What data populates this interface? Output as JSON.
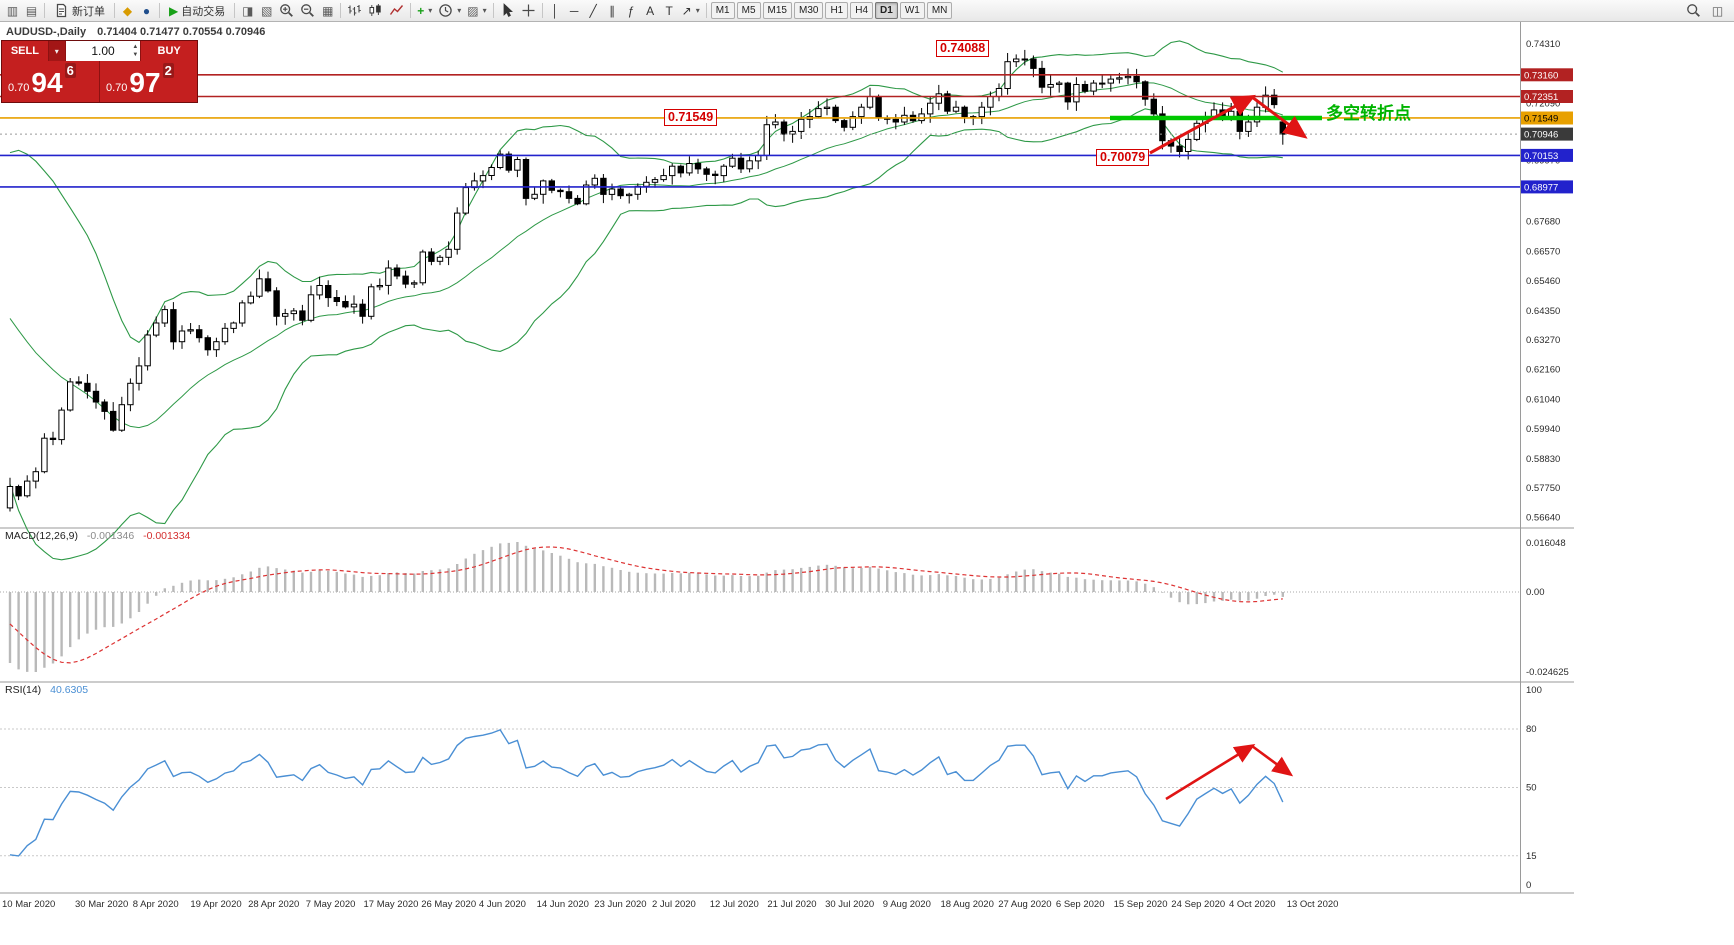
{
  "toolbar": {
    "dropdown_glyph": "▾",
    "groups": [
      {
        "items": [
          {
            "name": "new-chart-icon",
            "glyph": "▥",
            "color": "#5a5a5a"
          },
          {
            "name": "profiles-icon",
            "glyph": "▤",
            "color": "#5a5a5a"
          }
        ]
      },
      {
        "items": [
          {
            "name": "new-order-button",
            "svg": "doc",
            "label": "新订单"
          }
        ]
      },
      {
        "items": [
          {
            "name": "metaeditor-icon",
            "glyph": "◆",
            "color": "#d89b00"
          },
          {
            "name": "market-watch-icon",
            "glyph": "●",
            "color": "#1f4e8c"
          }
        ]
      },
      {
        "items": [
          {
            "name": "auto-trading-button",
            "glyph": "▶",
            "color": "#18a018",
            "label": "自动交易"
          }
        ]
      },
      {
        "items": [
          {
            "name": "data-window-icon",
            "glyph": "◨",
            "color": "#5a5a5a"
          },
          {
            "name": "navigator-icon",
            "glyph": "▧",
            "color": "#5a5a5a"
          },
          {
            "name": "zoom-in-icon",
            "svg": "zoom-in"
          },
          {
            "name": "zoom-out-icon",
            "svg": "zoom-out"
          },
          {
            "name": "tile-windows-icon",
            "glyph": "▦",
            "color": "#5a5a5a"
          }
        ]
      },
      {
        "items": [
          {
            "name": "bar-chart-icon",
            "svg": "bars"
          },
          {
            "name": "candlestick-chart-icon",
            "svg": "candles"
          },
          {
            "name": "line-chart-icon",
            "svg": "line"
          }
        ]
      },
      {
        "items": [
          {
            "name": "add-indicator-icon",
            "glyph": "+",
            "color": "#18a018",
            "bold": true,
            "dropdown": true
          },
          {
            "name": "period-clock-icon",
            "svg": "clock",
            "dropdown": true
          },
          {
            "name": "templates-icon",
            "glyph": "▨",
            "color": "#5a5a5a",
            "dropdown": true
          }
        ]
      },
      {
        "items": [
          {
            "name": "cursor-icon",
            "svg": "cursor"
          },
          {
            "name": "crosshair-icon",
            "svg": "crosshair"
          }
        ]
      },
      {
        "items": [
          {
            "name": "vertical-line-icon",
            "glyph": "│"
          },
          {
            "name": "horizontal-line-icon",
            "glyph": "─"
          },
          {
            "name": "trendline-icon",
            "glyph": "╱"
          },
          {
            "name": "channel-icon",
            "glyph": "∥"
          },
          {
            "name": "fibonacci-icon",
            "glyph": "ƒ"
          },
          {
            "name": "text-icon",
            "glyph": "A"
          },
          {
            "name": "label-icon",
            "glyph": "T"
          },
          {
            "name": "arrow-objects-icon",
            "glyph": "↗",
            "dropdown": true
          }
        ]
      },
      {
        "items": [
          {
            "name": "timeframe-m1",
            "label": "M1",
            "tf": true
          },
          {
            "name": "timeframe-m5",
            "label": "M5",
            "tf": true
          },
          {
            "name": "timeframe-m15",
            "label": "M15",
            "tf": true
          },
          {
            "name": "timeframe-m30",
            "label": "M30",
            "tf": true
          },
          {
            "name": "timeframe-h1",
            "label": "H1",
            "tf": true
          },
          {
            "name": "timeframe-h4",
            "label": "H4",
            "tf": true
          },
          {
            "name": "timeframe-d1",
            "label": "D1",
            "tf": true,
            "active": true
          },
          {
            "name": "timeframe-w1",
            "label": "W1",
            "tf": true
          },
          {
            "name": "timeframe-mn",
            "label": "MN",
            "tf": true
          }
        ]
      }
    ],
    "right_items": [
      {
        "name": "search-icon",
        "svg": "zoom"
      },
      {
        "name": "window-layout-icon",
        "glyph": "◫",
        "color": "#5a5a5a"
      }
    ]
  },
  "chart": {
    "symbol_line": {
      "symbol": "AUDUSD-,Daily",
      "ohlc": "0.71404 0.71477 0.70554 0.70946"
    },
    "trade_panel": {
      "sell_label": "SELL",
      "buy_label": "BUY",
      "volume": "1.00",
      "dropdown_glyph": "▾",
      "spin_up_glyph": "▲",
      "spin_down_glyph": "▼",
      "sell_price_prefix": "0.70",
      "sell_price_big": "94",
      "sell_price_sup": "6",
      "buy_price_prefix": "0.70",
      "buy_price_big": "97",
      "buy_price_sup": "2"
    },
    "annotations": {
      "high_label": "0.74088",
      "support_label": "0.71549",
      "low_label": "0.70079",
      "turning_point_label": "多空转折点",
      "arrow_color": "#e01414"
    }
  },
  "chart_data": {
    "type": "candlestick",
    "symbol": "AUDUSD",
    "timeframe": "Daily",
    "pre_closes": [
      0.6685,
      0.669,
      0.667,
      0.6665,
      0.664,
      0.662,
      0.66,
      0.6585,
      0.659,
      0.661,
      0.663,
      0.6615,
      0.66,
      0.662,
      0.664,
      0.6655,
      0.664,
      0.661,
      0.658,
      0.662,
      0.6605,
      0.659,
      0.657,
      0.66,
      0.662,
      0.658,
      0.652,
      0.645,
      0.632,
      0.618,
      0.602,
      0.586,
      0.57
    ],
    "closes": [
      0.578,
      0.5745,
      0.58,
      0.5835,
      0.596,
      0.5955,
      0.6065,
      0.617,
      0.6165,
      0.6135,
      0.6095,
      0.606,
      0.599,
      0.6085,
      0.6165,
      0.623,
      0.6345,
      0.639,
      0.644,
      0.632,
      0.636,
      0.6365,
      0.6335,
      0.629,
      0.632,
      0.637,
      0.639,
      0.6465,
      0.649,
      0.6555,
      0.651,
      0.6415,
      0.6425,
      0.6435,
      0.64,
      0.6495,
      0.653,
      0.6485,
      0.647,
      0.645,
      0.646,
      0.6415,
      0.6525,
      0.653,
      0.6595,
      0.6565,
      0.6535,
      0.654,
      0.6655,
      0.662,
      0.6635,
      0.6665,
      0.68,
      0.6895,
      0.692,
      0.694,
      0.697,
      0.702,
      0.696,
      0.7,
      0.6855,
      0.687,
      0.692,
      0.6885,
      0.688,
      0.6855,
      0.6835,
      0.6905,
      0.693,
      0.687,
      0.689,
      0.6865,
      0.687,
      0.69,
      0.6915,
      0.6925,
      0.694,
      0.6975,
      0.695,
      0.6985,
      0.6965,
      0.6945,
      0.694,
      0.6975,
      0.7005,
      0.6965,
      0.6995,
      0.7015,
      0.713,
      0.714,
      0.7095,
      0.7105,
      0.715,
      0.716,
      0.719,
      0.7195,
      0.7145,
      0.712,
      0.716,
      0.7195,
      0.7235,
      0.7155,
      0.715,
      0.714,
      0.7165,
      0.7145,
      0.717,
      0.721,
      0.7245,
      0.718,
      0.7195,
      0.716,
      0.716,
      0.7195,
      0.7235,
      0.7265,
      0.7365,
      0.7375,
      0.7375,
      0.734,
      0.727,
      0.728,
      0.7285,
      0.7215,
      0.728,
      0.7255,
      0.7285,
      0.7285,
      0.73,
      0.7305,
      0.731,
      0.729,
      0.7225,
      0.717,
      0.707,
      0.705,
      0.703,
      0.7075,
      0.7135,
      0.716,
      0.7185,
      0.716,
      0.718,
      0.7105,
      0.714,
      0.7195,
      0.724,
      0.7205,
      0.70946
    ],
    "overrides": [
      {
        "index": 118,
        "high": 0.74088
      },
      {
        "index": 136,
        "low": 0.70079
      },
      {
        "index": 148,
        "open": 0.71404,
        "high": 0.71477,
        "low": 0.70554
      }
    ],
    "bollinger": {
      "period": 20,
      "deviation": 2,
      "color": "#2e9947"
    },
    "hlines": [
      {
        "price": 0.7316,
        "color": "#b22222",
        "label": "0.73160"
      },
      {
        "price": 0.72351,
        "color": "#b22222",
        "label": "0.72351"
      },
      {
        "price": 0.71549,
        "color": "#e8a000",
        "label": "0.71549",
        "text_color": "#000000"
      },
      {
        "price": 0.70153,
        "color": "#2222cc",
        "label": "0.70153"
      },
      {
        "price": 0.68977,
        "color": "#2222cc",
        "label": "0.68977"
      }
    ],
    "current_price": {
      "price": 0.70946,
      "label": "0.70946",
      "color": "#3a3a3a"
    },
    "green_segment": {
      "price": 0.71549,
      "color": "#00c800"
    },
    "price_ticks": [
      "0.74310",
      "0.72090",
      "0.69970",
      "0.67680",
      "0.66570",
      "0.65460",
      "0.64350",
      "0.63270",
      "0.62160",
      "0.61040",
      "0.59940",
      "0.58830",
      "0.57750",
      "0.56640"
    ],
    "dates": [
      "10 Mar 2020",
      "30 Mar 2020",
      "8 Apr 2020",
      "19 Apr 2020",
      "28 Apr 2020",
      "7 May 2020",
      "17 May 2020",
      "26 May 2020",
      "4 Jun 2020",
      "14 Jun 2020",
      "23 Jun 2020",
      "2 Jul 2020",
      "12 Jul 2020",
      "21 Jul 2020",
      "30 Jul 2020",
      "9 Aug 2020",
      "18 Aug 2020",
      "27 Aug 2020",
      "6 Sep 2020",
      "15 Sep 2020",
      "24 Sep 2020",
      "4 Oct 2020",
      "13 Oct 2020"
    ],
    "macd": {
      "label": "MACD(12,26,9)",
      "value_main": "-0.001346",
      "value_signal": "-0.001334",
      "axis_max": "0.016048",
      "axis_zero": "0.00",
      "axis_min": "-0.024625",
      "histogram_color": "#b9b9b9",
      "signal_color": "#dd3333"
    },
    "rsi": {
      "label": "RSI(14)",
      "value": "40.6305",
      "axis_labels": [
        "100",
        "80",
        "50",
        "15",
        "0"
      ],
      "level_lines": [
        80,
        50,
        15
      ],
      "line_color": "#4a8fd4"
    }
  }
}
